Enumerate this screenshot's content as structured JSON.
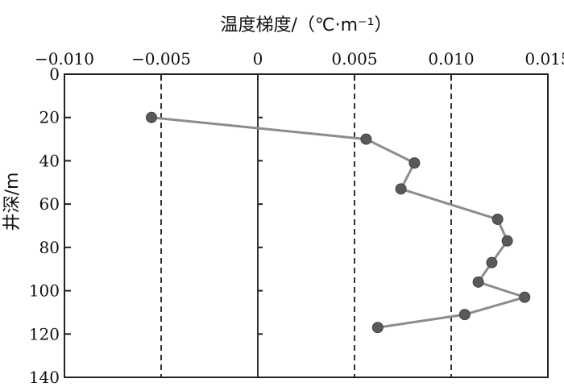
{
  "chart_data": {
    "type": "scatter",
    "xlabel": "温度梯度/（℃·m⁻¹）",
    "ylabel": "井深/m",
    "xlim": [
      -0.01,
      0.015
    ],
    "ylim": [
      0,
      140
    ],
    "x_axis_position": "top",
    "y_inverted": true,
    "x_ticks": [
      "−0.010",
      "−0.005",
      "0",
      "0.005",
      "0.010",
      "0.015"
    ],
    "x_tick_values": [
      -0.01,
      -0.005,
      0,
      0.005,
      0.01,
      0.015
    ],
    "y_ticks": [
      "0",
      "20",
      "40",
      "60",
      "80",
      "100",
      "120",
      "140"
    ],
    "y_tick_values": [
      0,
      20,
      40,
      60,
      80,
      100,
      120,
      140
    ],
    "reference_lines": {
      "dashed_x": [
        -0.005,
        0.005,
        0.01
      ],
      "solid_x": [
        0
      ]
    },
    "series": [
      {
        "x": [
          -0.0055,
          0.0056,
          0.0081,
          0.0074,
          0.0124,
          0.0129,
          0.0121,
          0.0114,
          0.0138,
          0.0107,
          0.0062
        ],
        "y": [
          20,
          30,
          41,
          53,
          67,
          77,
          87,
          96,
          103,
          111,
          117
        ]
      }
    ],
    "grid": false,
    "colors": {
      "line": "#8c8c8c",
      "marker": "#595959",
      "axis": "#222222"
    }
  }
}
